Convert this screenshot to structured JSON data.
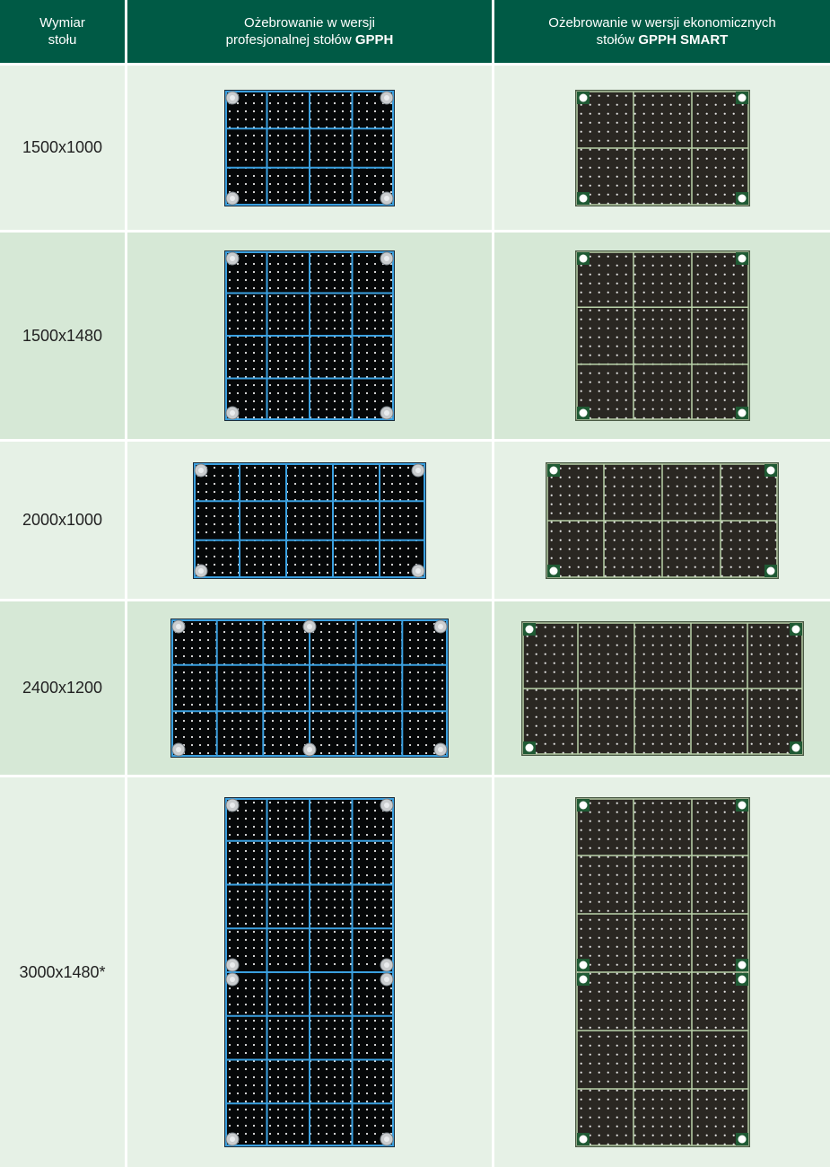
{
  "header": {
    "col1": "Wymiar\nstołu",
    "col1_line1": "Wymiar",
    "col1_line2": "stołu",
    "col2_line1": "Ożebrowanie w wersji",
    "col2_line2_pre": "profesjonalnej stołów ",
    "col2_line2_bold": "GPPH",
    "col3_line1": "Ożebrowanie w wersji ekonomicznych",
    "col3_line2_pre": "stołów ",
    "col3_line2_bold": "GPPH SMART"
  },
  "rows": [
    {
      "size": "1500x1000",
      "pro": {
        "cols": 4,
        "rows": 3
      },
      "smart": {
        "cols": 3,
        "rows": 2
      }
    },
    {
      "size": "1500x1480",
      "pro": {
        "cols": 4,
        "rows": 4
      },
      "smart": {
        "cols": 3,
        "rows": 3
      }
    },
    {
      "size": "2000x1000",
      "pro": {
        "cols": 5,
        "rows": 3
      },
      "smart": {
        "cols": 4,
        "rows": 2
      }
    },
    {
      "size": "2400x1200",
      "pro": {
        "cols": 6,
        "rows": 3
      },
      "smart": {
        "cols": 5,
        "rows": 2
      }
    },
    {
      "size": "3000x1480*",
      "pro": {
        "cols": 4,
        "rows": 8
      },
      "smart": {
        "cols": 3,
        "rows": 6
      }
    }
  ],
  "colors": {
    "header_bg": "#005a45",
    "row_light": "#e6f1e6",
    "row_dark": "#d6e8d6",
    "pro_rib": "#3aa0e0",
    "smart_rib": "#b9d3a9"
  }
}
